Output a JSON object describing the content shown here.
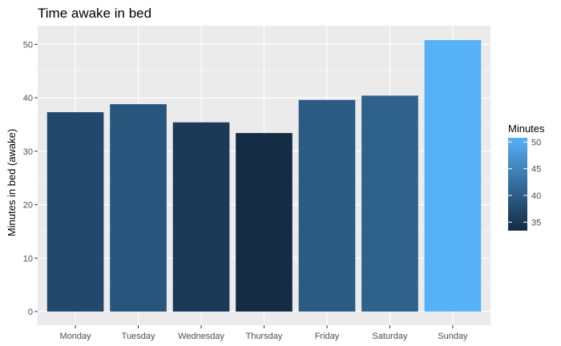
{
  "chart_data": {
    "type": "bar",
    "title": "Time awake in bed",
    "xlabel": "",
    "ylabel": "Minutes in bed (awake)",
    "categories": [
      "Monday",
      "Tuesday",
      "Wednesday",
      "Thursday",
      "Friday",
      "Saturday",
      "Sunday"
    ],
    "values": [
      37.3,
      38.8,
      35.4,
      33.4,
      39.6,
      40.4,
      50.8
    ],
    "ylim": [
      0,
      53.5
    ],
    "yticks": [
      0,
      10,
      20,
      30,
      40,
      50
    ],
    "grid": true,
    "panel_background": "#ebebeb",
    "legend": {
      "title": "Minutes",
      "position": "right",
      "ticks": [
        35,
        40,
        45,
        50
      ],
      "color_low": "#132b43",
      "color_high": "#56b1f7",
      "range": [
        33.4,
        50.8
      ]
    }
  }
}
